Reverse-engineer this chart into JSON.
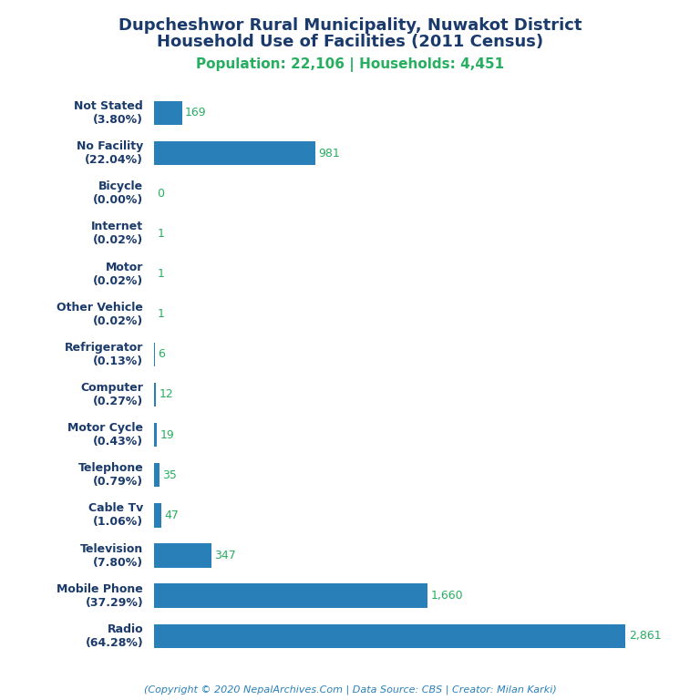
{
  "title_line1": "Dupcheshwor Rural Municipality, Nuwakot District",
  "title_line2": "Household Use of Facilities (2011 Census)",
  "subtitle": "Population: 22,106 | Households: 4,451",
  "footer": "(Copyright © 2020 NepalArchives.Com | Data Source: CBS | Creator: Milan Karki)",
  "categories": [
    "Not Stated\n(3.80%)",
    "No Facility\n(22.04%)",
    "Bicycle\n(0.00%)",
    "Internet\n(0.02%)",
    "Motor\n(0.02%)",
    "Other Vehicle\n(0.02%)",
    "Refrigerator\n(0.13%)",
    "Computer\n(0.27%)",
    "Motor Cycle\n(0.43%)",
    "Telephone\n(0.79%)",
    "Cable Tv\n(1.06%)",
    "Television\n(7.80%)",
    "Mobile Phone\n(37.29%)",
    "Radio\n(64.28%)"
  ],
  "values": [
    169,
    981,
    0,
    1,
    1,
    1,
    6,
    12,
    19,
    35,
    47,
    347,
    1660,
    2861
  ],
  "bar_color": "#2980b9",
  "title_color": "#1a3a6b",
  "subtitle_color": "#27ae60",
  "value_color": "#27ae60",
  "footer_color": "#2980b9",
  "background_color": "#ffffff",
  "xlim": [
    0,
    3100
  ]
}
